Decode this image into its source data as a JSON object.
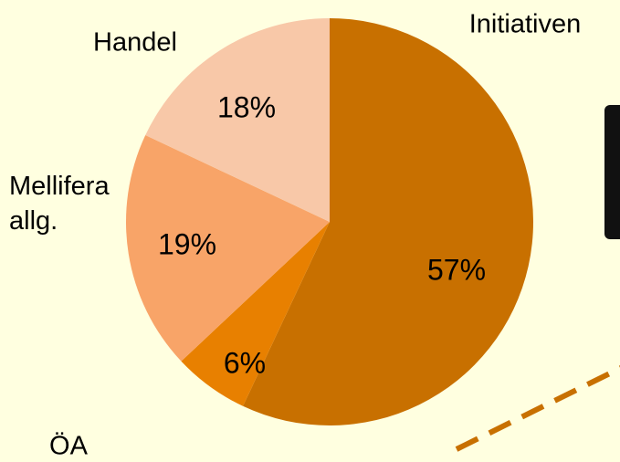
{
  "chart_data": {
    "type": "pie",
    "categories": [
      "Initiativen",
      "ÖA",
      "Mellifera allg.",
      "Handel"
    ],
    "values": [
      57,
      6,
      19,
      18
    ],
    "value_labels": [
      "57%",
      "6%",
      "19%",
      "18%"
    ],
    "colors": [
      "#c87000",
      "#e88000",
      "#f8a468",
      "#f8c8a8"
    ],
    "start_angle": 0,
    "direction": "clockwise"
  }
}
